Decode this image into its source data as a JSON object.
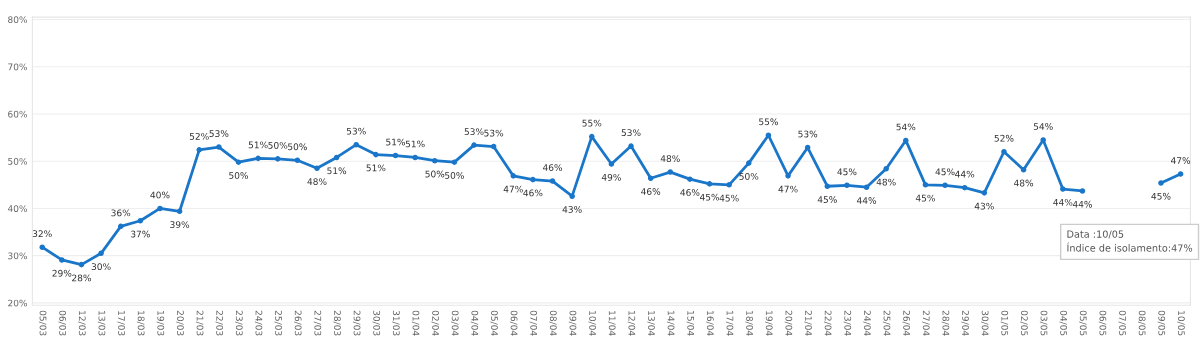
{
  "chart_data": {
    "type": "line",
    "categories": [
      "05/03",
      "06/03",
      "12/03",
      "13/03",
      "17/03",
      "18/03",
      "19/03",
      "20/03",
      "21/03",
      "22/03",
      "23/03",
      "24/03",
      "25/03",
      "26/03",
      "27/03",
      "28/03",
      "29/03",
      "30/03",
      "31/03",
      "01/04",
      "02/04",
      "03/04",
      "04/04",
      "05/04",
      "06/04",
      "07/04",
      "08/04",
      "09/04",
      "10/04",
      "11/04",
      "12/04",
      "13/04",
      "14/04",
      "15/04",
      "16/04",
      "17/04",
      "18/04",
      "19/04",
      "20/04",
      "21/04",
      "22/04",
      "23/04",
      "24/04",
      "25/04",
      "26/04",
      "27/04",
      "28/04",
      "29/04",
      "30/04",
      "01/05",
      "02/05",
      "03/05",
      "04/05",
      "05/05",
      "06/05",
      "07/05",
      "08/05",
      "09/05",
      "10/05"
    ],
    "series": [
      {
        "color": "#1a76c9",
        "values": [
          31.8,
          29.1,
          28.1,
          30.5,
          36.2,
          37.4,
          40.0,
          39.4,
          52.4,
          53.0,
          49.8,
          50.6,
          50.5,
          50.2,
          48.5,
          50.8,
          53.5,
          51.4,
          51.2,
          50.8,
          50.1,
          49.8,
          53.4,
          53.1,
          46.9,
          46.1,
          45.8,
          42.6,
          55.2,
          49.4,
          53.2,
          46.4,
          47.7,
          46.2,
          45.2,
          45.0,
          49.6,
          55.5,
          46.9,
          52.9,
          44.7,
          44.9,
          44.5,
          48.4,
          54.4,
          45.0,
          44.9,
          44.4,
          43.3,
          52.0,
          48.2,
          54.5,
          44.1,
          43.7,
          null,
          null,
          null,
          45.4,
          47.3
        ],
        "value_labels": [
          "32%",
          "29%",
          "28%",
          "30%",
          "36%",
          "37%",
          "40%",
          "39%",
          "52%",
          "53%",
          "50%",
          "51%",
          "50%",
          "50%",
          "48%",
          "51%",
          "53%",
          "51%",
          "51%",
          "51%",
          "50%",
          "50%",
          "53%",
          "53%",
          "47%",
          "46%",
          "46%",
          "43%",
          "55%",
          "49%",
          "53%",
          "46%",
          "48%",
          "46%",
          "45%",
          "45%",
          "50%",
          "55%",
          "47%",
          "53%",
          "45%",
          "45%",
          "44%",
          "48%",
          "54%",
          "45%",
          "45%",
          "44%",
          "43%",
          "52%",
          "48%",
          "54%",
          "44%",
          "44%",
          null,
          null,
          null,
          "45%",
          "47%"
        ]
      }
    ],
    "ylim": [
      19.5,
      80.5
    ],
    "yticks": [
      {
        "value": 20,
        "label": "20%"
      },
      {
        "value": 30,
        "label": "30%"
      },
      {
        "value": 40,
        "label": "40%"
      },
      {
        "value": 50,
        "label": "50%"
      },
      {
        "value": 60,
        "label": "60%"
      },
      {
        "value": 70,
        "label": "70%"
      },
      {
        "value": 80,
        "label": "80%"
      }
    ],
    "grid": "y",
    "marker": "circle",
    "line_style": "solid",
    "annotations": [
      "Data :10/05",
      "Índice de isolamento:47%"
    ]
  }
}
